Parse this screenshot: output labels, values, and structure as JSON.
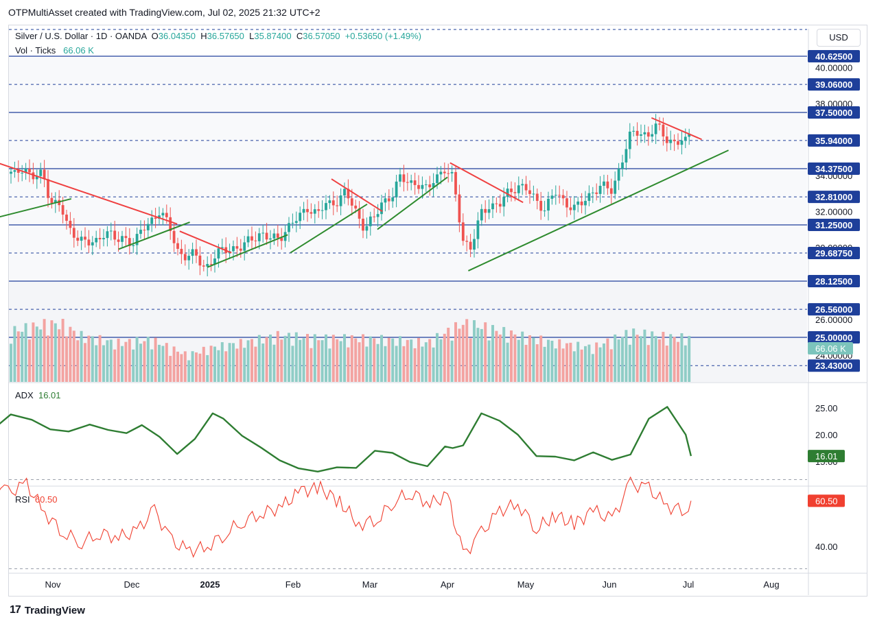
{
  "caption": "OTPMultiAsset created with TradingView.com, Jul 02, 2025 21:32 UTC+2",
  "brand": "TradingView",
  "currency_button": "USD",
  "legend": {
    "symbol": "Silver / U.S. Dollar · 1D · OANDA",
    "o_label": "O",
    "o": "36.04350",
    "h_label": "H",
    "h": "36.57650",
    "l_label": "L",
    "l": "35.87400",
    "c_label": "C",
    "c": "36.57050",
    "change": "+0.53650 (+1.49%)",
    "vol_label": "Vol · Ticks",
    "vol": "66.06 K"
  },
  "adx_label": "ADX",
  "adx_value": "16.01",
  "rsi_label": "RSI",
  "rsi_value": "60.50",
  "colors": {
    "up": "#26a69a",
    "down": "#ef5350",
    "level": "#1e3f9a",
    "support": "#2e8b2e",
    "resistance": "#ef4040",
    "adx": "#2e7d32",
    "rsi": "#f04030"
  },
  "chart_data": {
    "type": "candlestick",
    "x_ticks": [
      "Nov",
      "Dec",
      "2025",
      "Feb",
      "Mar",
      "Apr",
      "May",
      "Jun",
      "Jul",
      "Aug"
    ],
    "price_axis_labels": [
      "40.00000",
      "38.00000",
      "34.00000",
      "32.00000",
      "30.00000",
      "26.00000",
      "24.00000"
    ],
    "levels": [
      {
        "value": "40.62500",
        "style": "solid"
      },
      {
        "value": "39.06000",
        "style": "dashed"
      },
      {
        "value": "37.50000",
        "style": "solid"
      },
      {
        "value": "35.94000",
        "style": "dashed"
      },
      {
        "value": "34.37500",
        "style": "solid"
      },
      {
        "value": "32.81000",
        "style": "dashed"
      },
      {
        "value": "31.25000",
        "style": "solid"
      },
      {
        "value": "29.68750",
        "style": "dashed"
      },
      {
        "value": "28.12500",
        "style": "solid"
      },
      {
        "value": "26.56000",
        "style": "dashed"
      },
      {
        "value": "25.00000",
        "style": "solid"
      },
      {
        "value": "23.43000",
        "style": "dashed"
      }
    ],
    "last_price": "36.57050",
    "volume_badge": "66.06 K",
    "close_path": [
      [
        "2024-10-01",
        31.3
      ],
      [
        "2024-10-03",
        32.2
      ],
      [
        "2024-10-07",
        33.8
      ],
      [
        "2024-10-10",
        33.2
      ],
      [
        "2024-10-14",
        34.4
      ],
      [
        "2024-10-17",
        33.9
      ],
      [
        "2024-10-21",
        34.6
      ],
      [
        "2024-10-24",
        33.8
      ],
      [
        "2024-10-28",
        34.1
      ],
      [
        "2024-10-31",
        32.7
      ],
      [
        "2024-11-04",
        32.2
      ],
      [
        "2024-11-07",
        31.0
      ],
      [
        "2024-11-11",
        30.6
      ],
      [
        "2024-11-14",
        30.1
      ],
      [
        "2024-11-18",
        30.4
      ],
      [
        "2024-11-21",
        31.0
      ],
      [
        "2024-11-25",
        30.3
      ],
      [
        "2024-11-28",
        30.6
      ],
      [
        "2024-12-02",
        30.2
      ],
      [
        "2024-12-05",
        30.9
      ],
      [
        "2024-12-09",
        31.6
      ],
      [
        "2024-12-12",
        32.0
      ],
      [
        "2024-12-16",
        31.1
      ],
      [
        "2024-12-19",
        29.9
      ],
      [
        "2024-12-23",
        29.4
      ],
      [
        "2024-12-26",
        29.6
      ],
      [
        "2024-12-30",
        28.9
      ],
      [
        "2025-01-02",
        29.3
      ],
      [
        "2025-01-06",
        29.9
      ],
      [
        "2025-01-09",
        30.0
      ],
      [
        "2025-01-13",
        29.9
      ],
      [
        "2025-01-16",
        30.5
      ],
      [
        "2025-01-20",
        30.8
      ],
      [
        "2025-01-23",
        30.4
      ],
      [
        "2025-01-27",
        30.6
      ],
      [
        "2025-01-30",
        31.1
      ],
      [
        "2025-02-03",
        31.6
      ],
      [
        "2025-02-06",
        32.3
      ],
      [
        "2025-02-10",
        31.8
      ],
      [
        "2025-02-13",
        32.4
      ],
      [
        "2025-02-17",
        32.6
      ],
      [
        "2025-02-20",
        33.0
      ],
      [
        "2025-02-24",
        32.0
      ],
      [
        "2025-02-27",
        31.1
      ],
      [
        "2025-03-03",
        31.6
      ],
      [
        "2025-03-06",
        32.6
      ],
      [
        "2025-03-10",
        32.9
      ],
      [
        "2025-03-13",
        33.8
      ],
      [
        "2025-03-17",
        33.7
      ],
      [
        "2025-03-20",
        33.5
      ],
      [
        "2025-03-24",
        33.1
      ],
      [
        "2025-03-27",
        34.0
      ],
      [
        "2025-03-31",
        34.3
      ],
      [
        "2025-04-03",
        33.8
      ],
      [
        "2025-04-07",
        30.5
      ],
      [
        "2025-04-10",
        29.9
      ],
      [
        "2025-04-14",
        31.9
      ],
      [
        "2025-04-17",
        32.4
      ],
      [
        "2025-04-21",
        32.3
      ],
      [
        "2025-04-24",
        33.0
      ],
      [
        "2025-04-28",
        33.5
      ],
      [
        "2025-05-01",
        33.2
      ],
      [
        "2025-05-05",
        32.6
      ],
      [
        "2025-05-08",
        32.2
      ],
      [
        "2025-05-12",
        33.0
      ],
      [
        "2025-05-15",
        32.6
      ],
      [
        "2025-05-19",
        32.2
      ],
      [
        "2025-05-22",
        32.4
      ],
      [
        "2025-05-26",
        33.2
      ],
      [
        "2025-05-29",
        33.4
      ],
      [
        "2025-06-02",
        33.1
      ],
      [
        "2025-06-05",
        34.6
      ],
      [
        "2025-06-09",
        36.2
      ],
      [
        "2025-06-12",
        36.4
      ],
      [
        "2025-06-16",
        36.3
      ],
      [
        "2025-06-19",
        36.7
      ],
      [
        "2025-06-23",
        36.0
      ],
      [
        "2025-06-26",
        35.9
      ],
      [
        "2025-06-30",
        35.8
      ],
      [
        "2025-07-02",
        36.57
      ]
    ],
    "volume_path": [
      [
        "2024-10-01",
        3.5
      ],
      [
        "2024-10-14",
        3.3
      ],
      [
        "2024-10-28",
        3.8
      ],
      [
        "2024-11-04",
        3.9
      ],
      [
        "2024-11-11",
        3.1
      ],
      [
        "2024-11-25",
        2.6
      ],
      [
        "2024-12-09",
        2.8
      ],
      [
        "2024-12-23",
        1.8
      ],
      [
        "2025-01-02",
        2.3
      ],
      [
        "2025-01-13",
        2.6
      ],
      [
        "2025-01-27",
        3.1
      ],
      [
        "2025-02-10",
        2.9
      ],
      [
        "2025-02-24",
        2.9
      ],
      [
        "2025-03-10",
        2.8
      ],
      [
        "2025-03-24",
        2.6
      ],
      [
        "2025-04-07",
        3.9
      ],
      [
        "2025-04-14",
        3.7
      ],
      [
        "2025-04-28",
        3.1
      ],
      [
        "2025-05-12",
        2.6
      ],
      [
        "2025-05-26",
        2.3
      ],
      [
        "2025-06-09",
        3.3
      ],
      [
        "2025-06-23",
        3.0
      ],
      [
        "2025-07-02",
        2.9
      ]
    ],
    "adx_axis_labels": [
      "25.00",
      "20.00",
      "15.00"
    ],
    "adx_path": [
      [
        "2024-10-01",
        15.8
      ],
      [
        "2024-10-08",
        20.5
      ],
      [
        "2024-10-16",
        23.8
      ],
      [
        "2024-10-24",
        22.8
      ],
      [
        "2024-10-31",
        21.0
      ],
      [
        "2024-11-07",
        20.6
      ],
      [
        "2024-11-15",
        21.9
      ],
      [
        "2024-11-22",
        20.9
      ],
      [
        "2024-11-29",
        20.3
      ],
      [
        "2024-12-05",
        21.8
      ],
      [
        "2024-12-12",
        19.6
      ],
      [
        "2024-12-19",
        16.4
      ],
      [
        "2024-12-26",
        19.2
      ],
      [
        "2025-01-02",
        24.0
      ],
      [
        "2025-01-06",
        23.0
      ],
      [
        "2025-01-13",
        19.8
      ],
      [
        "2025-01-20",
        17.6
      ],
      [
        "2025-01-27",
        15.2
      ],
      [
        "2025-02-03",
        13.7
      ],
      [
        "2025-02-10",
        13.1
      ],
      [
        "2025-02-17",
        13.9
      ],
      [
        "2025-02-24",
        13.8
      ],
      [
        "2025-03-03",
        17.0
      ],
      [
        "2025-03-10",
        16.6
      ],
      [
        "2025-03-17",
        14.9
      ],
      [
        "2025-03-24",
        14.1
      ],
      [
        "2025-03-31",
        17.8
      ],
      [
        "2025-04-03",
        17.5
      ],
      [
        "2025-04-07",
        18.0
      ],
      [
        "2025-04-14",
        24.0
      ],
      [
        "2025-04-21",
        22.6
      ],
      [
        "2025-04-28",
        20.0
      ],
      [
        "2025-05-05",
        16.0
      ],
      [
        "2025-05-12",
        15.9
      ],
      [
        "2025-05-19",
        15.2
      ],
      [
        "2025-05-26",
        16.7
      ],
      [
        "2025-06-02",
        15.3
      ],
      [
        "2025-06-09",
        16.3
      ],
      [
        "2025-06-16",
        23.0
      ],
      [
        "2025-06-23",
        25.2
      ],
      [
        "2025-06-30",
        20.0
      ],
      [
        "2025-07-02",
        16.01
      ]
    ],
    "rsi_axis_labels": [
      "40.00"
    ],
    "rsi_path": [
      [
        "2024-10-01",
        62
      ],
      [
        "2024-10-08",
        68
      ],
      [
        "2024-10-15",
        64
      ],
      [
        "2024-10-22",
        68
      ],
      [
        "2024-10-29",
        55
      ],
      [
        "2024-11-05",
        46
      ],
      [
        "2024-11-12",
        42
      ],
      [
        "2024-11-19",
        46
      ],
      [
        "2024-11-26",
        44
      ],
      [
        "2024-12-03",
        47
      ],
      [
        "2024-12-10",
        56
      ],
      [
        "2024-12-17",
        42
      ],
      [
        "2024-12-24",
        38
      ],
      [
        "2024-12-31",
        40
      ],
      [
        "2025-01-07",
        46
      ],
      [
        "2025-01-14",
        52
      ],
      [
        "2025-01-21",
        55
      ],
      [
        "2025-01-28",
        58
      ],
      [
        "2025-02-04",
        65
      ],
      [
        "2025-02-11",
        66
      ],
      [
        "2025-02-18",
        60
      ],
      [
        "2025-02-25",
        50
      ],
      [
        "2025-03-04",
        52
      ],
      [
        "2025-03-11",
        61
      ],
      [
        "2025-03-18",
        64
      ],
      [
        "2025-03-25",
        59
      ],
      [
        "2025-04-01",
        63
      ],
      [
        "2025-04-07",
        36
      ],
      [
        "2025-04-14",
        46
      ],
      [
        "2025-04-21",
        56
      ],
      [
        "2025-04-28",
        59
      ],
      [
        "2025-05-05",
        48
      ],
      [
        "2025-05-12",
        54
      ],
      [
        "2025-05-19",
        50
      ],
      [
        "2025-05-26",
        56
      ],
      [
        "2025-06-02",
        52
      ],
      [
        "2025-06-09",
        68
      ],
      [
        "2025-06-16",
        66
      ],
      [
        "2025-06-23",
        58
      ],
      [
        "2025-06-30",
        56
      ],
      [
        "2025-07-02",
        60.5
      ]
    ],
    "trend_lines": [
      {
        "kind": "support",
        "from": [
          "2024-10-01",
          31.3
        ],
        "to": [
          "2024-11-08",
          32.7
        ]
      },
      {
        "kind": "support",
        "from": [
          "2024-11-26",
          29.9
        ],
        "to": [
          "2024-12-24",
          31.4
        ]
      },
      {
        "kind": "support",
        "from": [
          "2024-12-31",
          28.9
        ],
        "to": [
          "2025-01-30",
          30.7
        ]
      },
      {
        "kind": "support",
        "from": [
          "2025-01-31",
          29.7
        ],
        "to": [
          "2025-02-28",
          32.4
        ]
      },
      {
        "kind": "support",
        "from": [
          "2025-03-04",
          31.0
        ],
        "to": [
          "2025-04-01",
          33.9
        ]
      },
      {
        "kind": "support",
        "from": [
          "2025-04-09",
          28.7
        ],
        "to": [
          "2025-07-16",
          35.4
        ]
      },
      {
        "kind": "resistance",
        "from": [
          "2024-10-01",
          32.0
        ],
        "to": [
          "2024-10-06",
          31.6
        ]
      },
      {
        "kind": "resistance",
        "from": [
          "2024-10-07",
          34.9
        ],
        "to": [
          "2024-12-19",
          31.3
        ]
      },
      {
        "kind": "resistance",
        "from": [
          "2024-12-20",
          30.9
        ],
        "to": [
          "2025-01-09",
          29.7
        ]
      },
      {
        "kind": "resistance",
        "from": [
          "2025-02-15",
          33.8
        ],
        "to": [
          "2025-03-06",
          32.0
        ]
      },
      {
        "kind": "resistance",
        "from": [
          "2025-04-02",
          34.7
        ],
        "to": [
          "2025-04-30",
          32.5
        ]
      },
      {
        "kind": "resistance",
        "from": [
          "2025-06-17",
          37.2
        ],
        "to": [
          "2025-07-06",
          36.0
        ]
      }
    ]
  }
}
